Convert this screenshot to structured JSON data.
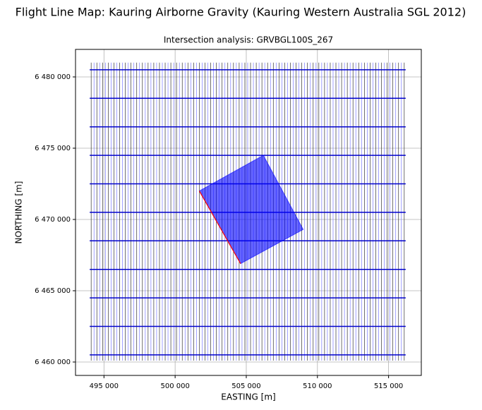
{
  "chart_data": {
    "type": "flight-lines",
    "title": "Flight Line Map: Kauring Airborne Gravity (Kauring Western Australia SGL 2012)",
    "subtitle": "Intersection analysis: GRVBGL100S_267",
    "x_label": "EASTING [m]",
    "y_label": "NORTHING [m]",
    "xlim": [
      493000,
      517300
    ],
    "ylim": [
      6459060,
      6481930
    ],
    "xticks": [
      {
        "value": 495000,
        "label": "495 000"
      },
      {
        "value": 500000,
        "label": "500 000"
      },
      {
        "value": 505000,
        "label": "505 000"
      },
      {
        "value": 510000,
        "label": "510 000"
      },
      {
        "value": 515000,
        "label": "515 000"
      }
    ],
    "yticks": [
      {
        "value": 6460000,
        "label": "6 460 000"
      },
      {
        "value": 6465000,
        "label": "6 465 000"
      },
      {
        "value": 6470000,
        "label": "6 470 000"
      },
      {
        "value": 6475000,
        "label": "6 475 000"
      },
      {
        "value": 6480000,
        "label": "6 480 000"
      }
    ],
    "grid": true,
    "traverse_colors": [
      "#333333",
      "#7b7bff"
    ],
    "traverse_y": [
      6460100,
      6481000
    ],
    "traverse_x": [
      494100,
      494300,
      494500,
      494700,
      494900,
      495100,
      495300,
      495500,
      495700,
      495900,
      496100,
      496300,
      496500,
      496700,
      496900,
      497100,
      497300,
      497500,
      497700,
      497900,
      498100,
      498300,
      498500,
      498700,
      498900,
      499100,
      499300,
      499500,
      499700,
      499900,
      500100,
      500300,
      500500,
      500700,
      500900,
      501100,
      501300,
      501500,
      501700,
      501900,
      502100,
      502300,
      502500,
      502700,
      502900,
      503100,
      503300,
      503500,
      503700,
      503900,
      504100,
      504300,
      504500,
      504700,
      504900,
      505100,
      505300,
      505500,
      505700,
      505900,
      506100,
      506300,
      506500,
      506700,
      506900,
      507100,
      507300,
      507500,
      507700,
      507900,
      508100,
      508300,
      508500,
      508700,
      508900,
      509100,
      509300,
      509500,
      509700,
      509900,
      510100,
      510300,
      510500,
      510700,
      510900,
      511100,
      511300,
      511500,
      511700,
      511900,
      512100,
      512300,
      512500,
      512700,
      512900,
      513100,
      513300,
      513500,
      513700,
      513900,
      514100,
      514300,
      514500,
      514700,
      514900,
      515100,
      515300,
      515500,
      515700,
      515900,
      516100
    ],
    "tie_color": "#0000cc",
    "tie_x": [
      494000,
      516200
    ],
    "tie_y": [
      6460500,
      6462500,
      6464500,
      6466500,
      6468500,
      6470500,
      6472500,
      6474500,
      6476500,
      6478500,
      6480500
    ],
    "intersection_area": {
      "color": "#0000ff",
      "x": [
        501700,
        506200,
        509000,
        504600
      ],
      "y": [
        6472000,
        6474500,
        6469300,
        6466900
      ]
    },
    "intersection_line": {
      "color": "#ff0000",
      "x": [
        501700,
        504600
      ],
      "y": [
        6472000,
        6466900
      ]
    }
  }
}
